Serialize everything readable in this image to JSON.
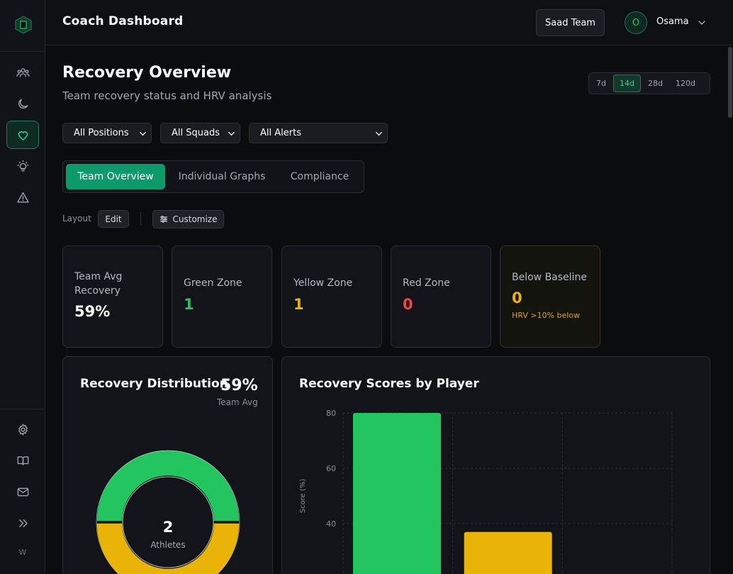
{
  "header": {
    "title": "Coach Dashboard",
    "team_button": "Saad Team",
    "user_initial": "O",
    "user_name": "Osama"
  },
  "sidebar": {
    "items": [
      {
        "icon": "users-icon"
      },
      {
        "icon": "moon-icon"
      },
      {
        "icon": "heart-icon",
        "active": true
      },
      {
        "icon": "lightbulb-icon"
      },
      {
        "icon": "alert-triangle-icon"
      }
    ],
    "bottom_items": [
      {
        "icon": "settings-icon"
      },
      {
        "icon": "book-icon"
      },
      {
        "icon": "mail-icon"
      },
      {
        "icon": "expand-icon"
      }
    ],
    "footer_initial": "W"
  },
  "page": {
    "title": "Recovery Overview",
    "subtitle": "Team recovery status and HRV analysis"
  },
  "ranges": [
    {
      "label": "7d",
      "active": false
    },
    {
      "label": "14d",
      "active": true
    },
    {
      "label": "28d",
      "active": false
    },
    {
      "label": "120d",
      "active": false
    }
  ],
  "filters": {
    "positions": "All Positions",
    "squads": "All Squads",
    "alerts": "All Alerts"
  },
  "tabs": [
    {
      "label": "Team Overview",
      "active": true
    },
    {
      "label": "Individual Graphs",
      "active": false
    },
    {
      "label": "Compliance",
      "active": false
    }
  ],
  "layout": {
    "label": "Layout",
    "edit": "Edit",
    "customize": "Customize"
  },
  "stats": [
    {
      "label_line1": "Team Avg",
      "label_line2": "Recovery",
      "value": "59%",
      "color": "#ffffff"
    },
    {
      "label": "Green Zone",
      "value": "1",
      "color": "#22c55e"
    },
    {
      "label": "Yellow Zone",
      "value": "1",
      "color": "#eab308"
    },
    {
      "label": "Red Zone",
      "value": "0",
      "color": "#ef4444"
    },
    {
      "label": "Below Baseline",
      "value": "0",
      "color": "#eab308",
      "note": "HRV >10% below"
    }
  ],
  "distribution": {
    "title": "Recovery Distribution",
    "team_avg_value": "59%",
    "team_avg_label": "Team Avg",
    "center_value": "2",
    "center_label": "Athletes",
    "colors": {
      "green": "#22c55e",
      "yellow": "#eab308"
    }
  },
  "chart_data": {
    "type": "bar",
    "title": "Recovery Scores by Player",
    "ylabel": "Score (%)",
    "ylim": [
      0,
      80
    ],
    "yticks": [
      40,
      60,
      80
    ],
    "grid": true,
    "values": [
      80,
      37
    ],
    "colors": [
      "#22c55e",
      "#eab308"
    ]
  }
}
